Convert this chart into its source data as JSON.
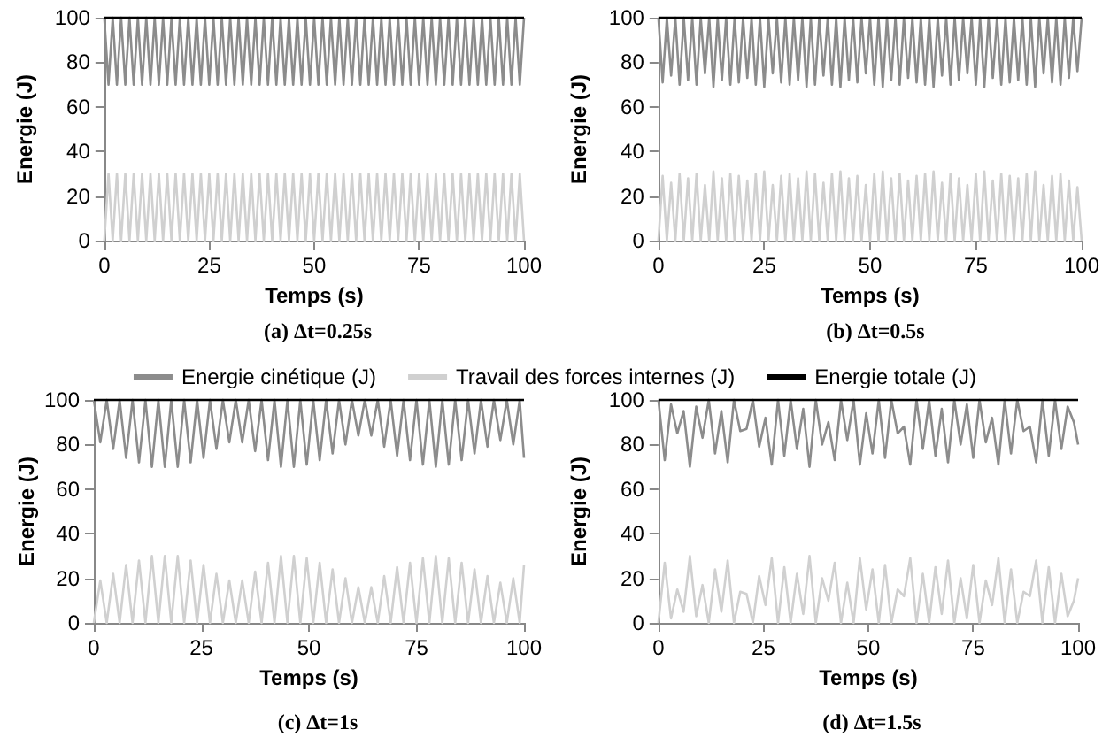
{
  "chart_data": [
    {
      "type": "line",
      "title": "(a) Δt=0.25s",
      "xlabel": "Temps (s)",
      "ylabel": "Energie (J)",
      "xlim": [
        0,
        100
      ],
      "ylim": [
        0,
        100
      ],
      "xticks": [
        0,
        25,
        50,
        75,
        100
      ],
      "yticks": [
        0,
        20,
        40,
        60,
        80,
        100
      ],
      "marker": "none",
      "x": [
        0,
        1,
        2,
        3,
        4,
        5,
        6,
        7,
        8,
        9,
        10,
        11,
        12,
        13,
        14,
        15,
        16,
        17,
        18,
        19,
        20,
        21,
        22,
        23,
        24,
        25,
        26,
        27,
        28,
        29,
        30,
        31,
        32,
        33,
        34,
        35,
        36,
        37,
        38,
        39,
        40,
        41,
        42,
        43,
        44,
        45,
        46,
        47,
        48,
        49,
        50,
        51,
        52,
        53,
        54,
        55,
        56,
        57,
        58,
        59,
        60,
        61,
        62,
        63,
        64,
        65,
        66,
        67,
        68,
        69,
        70,
        71,
        72,
        73,
        74,
        75,
        76,
        77,
        78,
        79,
        80,
        81,
        82,
        83,
        84,
        85,
        86,
        87,
        88,
        89,
        90,
        91,
        92,
        93,
        94,
        95,
        96,
        97,
        98,
        99,
        100
      ],
      "series": [
        {
          "color": "#8c8c8c",
          "values": [
            100,
            70,
            100,
            70,
            100,
            70,
            100,
            70,
            100,
            70,
            100,
            70,
            100,
            70,
            100,
            70,
            100,
            70,
            100,
            70,
            100,
            70,
            100,
            70,
            100,
            70,
            100,
            70,
            100,
            70,
            100,
            70,
            100,
            70,
            100,
            70,
            100,
            70,
            100,
            70,
            100,
            70,
            100,
            70,
            100,
            70,
            100,
            70,
            100,
            70,
            100,
            70,
            100,
            70,
            100,
            70,
            100,
            70,
            100,
            70,
            100,
            70,
            100,
            70,
            100,
            70,
            100,
            70,
            100,
            70,
            100,
            70,
            100,
            70,
            100,
            70,
            100,
            70,
            100,
            70,
            100,
            70,
            100,
            70,
            100,
            70,
            100,
            70,
            100,
            70,
            100,
            70,
            100,
            70,
            100,
            70,
            100,
            70,
            100,
            70,
            100
          ]
        },
        {
          "color": "#d0d0d0",
          "values": [
            0,
            30,
            0,
            30,
            0,
            30,
            0,
            30,
            0,
            30,
            0,
            30,
            0,
            30,
            0,
            30,
            0,
            30,
            0,
            30,
            0,
            30,
            0,
            30,
            0,
            30,
            0,
            30,
            0,
            30,
            0,
            30,
            0,
            30,
            0,
            30,
            0,
            30,
            0,
            30,
            0,
            30,
            0,
            30,
            0,
            30,
            0,
            30,
            0,
            30,
            0,
            30,
            0,
            30,
            0,
            30,
            0,
            30,
            0,
            30,
            0,
            30,
            0,
            30,
            0,
            30,
            0,
            30,
            0,
            30,
            0,
            30,
            0,
            30,
            0,
            30,
            0,
            30,
            0,
            30,
            0,
            30,
            0,
            30,
            0,
            30,
            0,
            30,
            0,
            30,
            0,
            30,
            0,
            30,
            0,
            30,
            0,
            30,
            0,
            30,
            0
          ]
        },
        {
          "color": "#000000",
          "values": [
            100,
            100,
            100,
            100,
            100,
            100,
            100,
            100,
            100,
            100,
            100,
            100,
            100,
            100,
            100,
            100,
            100,
            100,
            100,
            100,
            100,
            100,
            100,
            100,
            100,
            100,
            100,
            100,
            100,
            100,
            100,
            100,
            100,
            100,
            100,
            100,
            100,
            100,
            100,
            100,
            100,
            100,
            100,
            100,
            100,
            100,
            100,
            100,
            100,
            100,
            100,
            100,
            100,
            100,
            100,
            100,
            100,
            100,
            100,
            100,
            100,
            100,
            100,
            100,
            100,
            100,
            100,
            100,
            100,
            100,
            100,
            100,
            100,
            100,
            100,
            100,
            100,
            100,
            100,
            100,
            100,
            100,
            100,
            100,
            100,
            100,
            100,
            100,
            100,
            100,
            100,
            100,
            100,
            100,
            100,
            100,
            100,
            100,
            100,
            100,
            100
          ]
        }
      ]
    },
    {
      "type": "line",
      "title": "(b) Δt=0.5s",
      "xlabel": "Temps (s)",
      "ylabel": "Energie (J)",
      "xlim": [
        0,
        100
      ],
      "ylim": [
        0,
        100
      ],
      "xticks": [
        0,
        25,
        50,
        75,
        100
      ],
      "yticks": [
        0,
        20,
        40,
        60,
        80,
        100
      ],
      "marker": "none",
      "x": [
        0,
        1,
        2,
        3,
        4,
        5,
        6,
        7,
        8,
        9,
        10,
        11,
        12,
        13,
        14,
        15,
        16,
        17,
        18,
        19,
        20,
        21,
        22,
        23,
        24,
        25,
        26,
        27,
        28,
        29,
        30,
        31,
        32,
        33,
        34,
        35,
        36,
        37,
        38,
        39,
        40,
        41,
        42,
        43,
        44,
        45,
        46,
        47,
        48,
        49,
        50,
        51,
        52,
        53,
        54,
        55,
        56,
        57,
        58,
        59,
        60,
        61,
        62,
        63,
        64,
        65,
        66,
        67,
        68,
        69,
        70,
        71,
        72,
        73,
        74,
        75,
        76,
        77,
        78,
        79,
        80,
        81,
        82,
        83,
        84,
        85,
        86,
        87,
        88,
        89,
        90,
        91,
        92,
        93,
        94,
        95,
        96,
        97,
        98,
        99,
        100
      ],
      "series": [
        {
          "color": "#8c8c8c",
          "values": [
            100,
            71,
            100,
            74,
            100,
            70,
            100,
            72,
            100,
            70,
            100,
            75,
            100,
            69,
            100,
            72,
            100,
            70,
            100,
            71,
            100,
            73,
            100,
            70,
            100,
            69,
            100,
            75,
            100,
            71,
            100,
            70,
            100,
            72,
            100,
            69,
            100,
            70,
            100,
            74,
            100,
            70,
            100,
            69,
            100,
            72,
            100,
            71,
            100,
            75,
            100,
            70,
            100,
            69,
            100,
            72,
            100,
            70,
            100,
            73,
            100,
            71,
            100,
            70,
            100,
            69,
            100,
            74,
            100,
            70,
            100,
            72,
            100,
            75,
            100,
            70,
            100,
            69,
            100,
            73,
            100,
            70,
            100,
            71,
            100,
            72,
            100,
            70,
            100,
            69,
            100,
            75,
            100,
            71,
            100,
            70,
            100,
            73,
            100,
            76,
            100
          ]
        },
        {
          "color": "#d0d0d0",
          "values": [
            0,
            29,
            0,
            26,
            0,
            30,
            0,
            28,
            0,
            30,
            0,
            25,
            0,
            31,
            0,
            28,
            0,
            30,
            0,
            29,
            0,
            27,
            0,
            30,
            0,
            31,
            0,
            25,
            0,
            29,
            0,
            30,
            0,
            28,
            0,
            31,
            0,
            30,
            0,
            26,
            0,
            30,
            0,
            31,
            0,
            28,
            0,
            29,
            0,
            25,
            0,
            30,
            0,
            31,
            0,
            28,
            0,
            30,
            0,
            27,
            0,
            29,
            0,
            30,
            0,
            31,
            0,
            26,
            0,
            30,
            0,
            28,
            0,
            25,
            0,
            30,
            0,
            31,
            0,
            27,
            0,
            30,
            0,
            29,
            0,
            28,
            0,
            30,
            0,
            31,
            0,
            25,
            0,
            29,
            0,
            30,
            0,
            27,
            0,
            24,
            0
          ]
        },
        {
          "color": "#000000",
          "values": [
            100,
            100,
            100,
            100,
            100,
            100,
            100,
            100,
            100,
            100,
            100,
            100,
            100,
            100,
            100,
            100,
            100,
            100,
            100,
            100,
            100,
            100,
            100,
            100,
            100,
            100,
            100,
            100,
            100,
            100,
            100,
            100,
            100,
            100,
            100,
            100,
            100,
            100,
            100,
            100,
            100,
            100,
            100,
            100,
            100,
            100,
            100,
            100,
            100,
            100,
            100,
            100,
            100,
            100,
            100,
            100,
            100,
            100,
            100,
            100,
            100,
            100,
            100,
            100,
            100,
            100,
            100,
            100,
            100,
            100,
            100,
            100,
            100,
            100,
            100,
            100,
            100,
            100,
            100,
            100,
            100,
            100,
            100,
            100,
            100,
            100,
            100,
            100,
            100,
            100,
            100,
            100,
            100,
            100,
            100,
            100,
            100,
            100,
            100,
            100,
            100
          ]
        }
      ]
    },
    {
      "type": "line",
      "title": "(c) Δt=1s",
      "xlabel": "Temps (s)",
      "ylabel": "Energie (J)",
      "xlim": [
        0,
        100
      ],
      "ylim": [
        0,
        100
      ],
      "xticks": [
        0,
        25,
        50,
        75,
        100
      ],
      "yticks": [
        0,
        20,
        40,
        60,
        80,
        100
      ],
      "marker": "none",
      "legend": "top",
      "x": [
        0,
        1.5,
        3,
        4.5,
        6,
        7.5,
        9,
        10.5,
        12,
        13.5,
        15,
        16.5,
        18,
        19.5,
        21,
        22.5,
        24,
        25.5,
        27,
        28.5,
        30,
        31.5,
        33,
        34.5,
        36,
        37.5,
        39,
        40.5,
        42,
        43.5,
        45,
        46.5,
        48,
        49.5,
        51,
        52.5,
        54,
        55.5,
        57,
        58.5,
        60,
        61.5,
        63,
        64.5,
        66,
        67.5,
        69,
        70.5,
        72,
        73.5,
        75,
        76.5,
        78,
        79.5,
        81,
        82.5,
        84,
        85.5,
        87,
        88.5,
        90,
        91.5,
        93,
        94.5,
        96,
        97.5,
        99,
        100
      ],
      "series": [
        {
          "name": "Energie cinétique (J)",
          "color": "#8c8c8c",
          "values": [
            100,
            81,
            100,
            78,
            100,
            74,
            100,
            72,
            100,
            70,
            100,
            70,
            100,
            70,
            100,
            72,
            100,
            74,
            100,
            78,
            100,
            81,
            100,
            81,
            100,
            77,
            100,
            73,
            100,
            70,
            100,
            70,
            100,
            71,
            100,
            73,
            100,
            76,
            100,
            80,
            100,
            84,
            100,
            84,
            100,
            79,
            100,
            75,
            100,
            73,
            100,
            71,
            100,
            70,
            100,
            71,
            100,
            73,
            100,
            76,
            100,
            79,
            100,
            82,
            100,
            80,
            100,
            74
          ]
        },
        {
          "name": "Travail des forces internes (J)",
          "color": "#d0d0d0",
          "values": [
            0,
            19,
            0,
            22,
            0,
            26,
            0,
            28,
            0,
            30,
            0,
            30,
            0,
            30,
            0,
            28,
            0,
            26,
            0,
            22,
            0,
            19,
            0,
            19,
            0,
            23,
            0,
            27,
            0,
            30,
            0,
            30,
            0,
            29,
            0,
            27,
            0,
            24,
            0,
            20,
            0,
            16,
            0,
            16,
            0,
            21,
            0,
            25,
            0,
            27,
            0,
            29,
            0,
            30,
            0,
            29,
            0,
            27,
            0,
            24,
            0,
            21,
            0,
            18,
            0,
            20,
            0,
            26
          ]
        },
        {
          "name": "Energie totale (J)",
          "color": "#000000",
          "values": [
            100,
            100,
            100,
            100,
            100,
            100,
            100,
            100,
            100,
            100,
            100,
            100,
            100,
            100,
            100,
            100,
            100,
            100,
            100,
            100,
            100,
            100,
            100,
            100,
            100,
            100,
            100,
            100,
            100,
            100,
            100,
            100,
            100,
            100,
            100,
            100,
            100,
            100,
            100,
            100,
            100,
            100,
            100,
            100,
            100,
            100,
            100,
            100,
            100,
            100,
            100,
            100,
            100,
            100,
            100,
            100,
            100,
            100,
            100,
            100,
            100,
            100,
            100,
            100,
            100,
            100,
            100,
            100
          ]
        }
      ]
    },
    {
      "type": "line",
      "title": "(d) Δt=1.5s",
      "xlabel": "Temps (s)",
      "ylabel": "Energie (J)",
      "xlim": [
        0,
        100
      ],
      "ylim": [
        0,
        100
      ],
      "xticks": [
        0,
        25,
        50,
        75,
        100
      ],
      "yticks": [
        0,
        20,
        40,
        60,
        80,
        100
      ],
      "marker": "none",
      "x": [
        0,
        1.5,
        3,
        4.5,
        6,
        7.5,
        9,
        10.5,
        12,
        13.5,
        15,
        16.5,
        18,
        19.5,
        21,
        22.5,
        24,
        25.5,
        27,
        28.5,
        30,
        31.5,
        33,
        34.5,
        36,
        37.5,
        39,
        40.5,
        42,
        43.5,
        45,
        46.5,
        48,
        49.5,
        51,
        52.5,
        54,
        55.5,
        57,
        58.5,
        60,
        61.5,
        63,
        64.5,
        66,
        67.5,
        69,
        70.5,
        72,
        73.5,
        75,
        76.5,
        78,
        79.5,
        81,
        82.5,
        84,
        85.5,
        87,
        88.5,
        90,
        91.5,
        93,
        94.5,
        96,
        97.5,
        99,
        100
      ],
      "series": [
        {
          "color": "#8c8c8c",
          "values": [
            100,
            73,
            98,
            85,
            95,
            70,
            97,
            83,
            100,
            76,
            95,
            72,
            100,
            86,
            87,
            100,
            79,
            92,
            71,
            100,
            75,
            100,
            78,
            96,
            70,
            100,
            80,
            90,
            73,
            100,
            82,
            100,
            71,
            94,
            76,
            100,
            74,
            100,
            85,
            88,
            71,
            100,
            78,
            100,
            75,
            96,
            72,
            100,
            80,
            98,
            74,
            100,
            81,
            92,
            71,
            100,
            76,
            100,
            86,
            88,
            72,
            100,
            75,
            100,
            78,
            97,
            90,
            80
          ]
        },
        {
          "color": "#d0d0d0",
          "values": [
            0,
            27,
            2,
            15,
            5,
            30,
            3,
            17,
            0,
            24,
            5,
            28,
            0,
            14,
            13,
            0,
            21,
            8,
            29,
            0,
            25,
            0,
            22,
            4,
            30,
            0,
            20,
            10,
            27,
            0,
            18,
            0,
            29,
            6,
            24,
            0,
            26,
            0,
            15,
            12,
            29,
            0,
            22,
            0,
            25,
            4,
            28,
            0,
            20,
            2,
            26,
            0,
            19,
            8,
            29,
            0,
            24,
            0,
            14,
            12,
            28,
            0,
            25,
            0,
            22,
            3,
            10,
            20
          ]
        },
        {
          "color": "#000000",
          "values": [
            100,
            100,
            100,
            100,
            100,
            100,
            100,
            100,
            100,
            100,
            100,
            100,
            100,
            100,
            100,
            100,
            100,
            100,
            100,
            100,
            100,
            100,
            100,
            100,
            100,
            100,
            100,
            100,
            100,
            100,
            100,
            100,
            100,
            100,
            100,
            100,
            100,
            100,
            100,
            100,
            100,
            100,
            100,
            100,
            100,
            100,
            100,
            100,
            100,
            100,
            100,
            100,
            100,
            100,
            100,
            100,
            100,
            100,
            100,
            100,
            100,
            100,
            100,
            100,
            100,
            100,
            100,
            100
          ]
        }
      ]
    }
  ]
}
